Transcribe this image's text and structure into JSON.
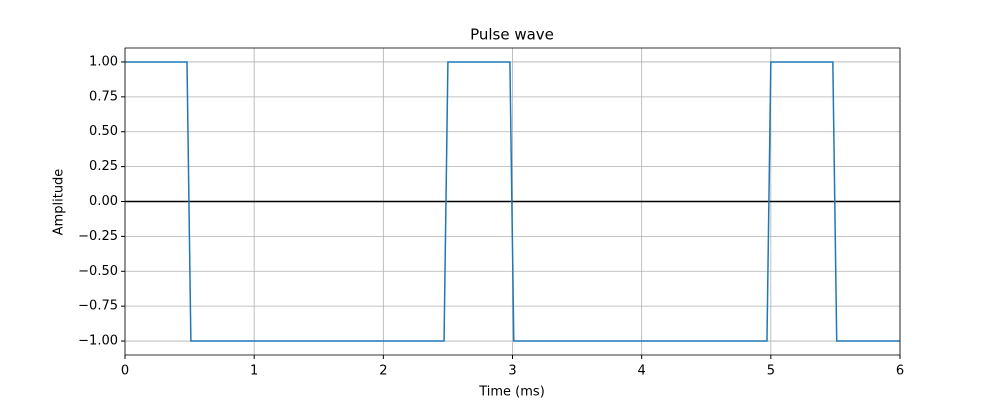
{
  "chart_data": {
    "type": "line",
    "title": "Pulse wave",
    "xlabel": "Time (ms)",
    "ylabel": "Amplitude",
    "x": [
      0,
      0.48,
      0.51,
      2.47,
      2.5,
      2.98,
      3.01,
      4.97,
      5.0,
      5.48,
      5.51,
      6
    ],
    "values": [
      1,
      1,
      -1,
      -1,
      1,
      1,
      -1,
      -1,
      1,
      1,
      -1,
      -1
    ],
    "color": "#1f77b4",
    "xlim": [
      0,
      6
    ],
    "xticks": [
      0,
      1,
      2,
      3,
      4,
      5,
      6
    ],
    "ylim": [
      -1.1,
      1.1
    ],
    "yticks": [
      {
        "value": -1,
        "label": "−1.00"
      },
      {
        "value": -0.75,
        "label": "−0.75"
      },
      {
        "value": -0.5,
        "label": "−0.50"
      },
      {
        "value": -0.25,
        "label": "−0.25"
      },
      {
        "value": 0,
        "label": "0.00"
      },
      {
        "value": 0.25,
        "label": "0.25"
      },
      {
        "value": 0.5,
        "label": "0.50"
      },
      {
        "value": 0.75,
        "label": "0.75"
      },
      {
        "value": 1,
        "label": "1.00"
      }
    ],
    "grid": true,
    "hline": {
      "y": 0,
      "color": "#000000"
    }
  }
}
